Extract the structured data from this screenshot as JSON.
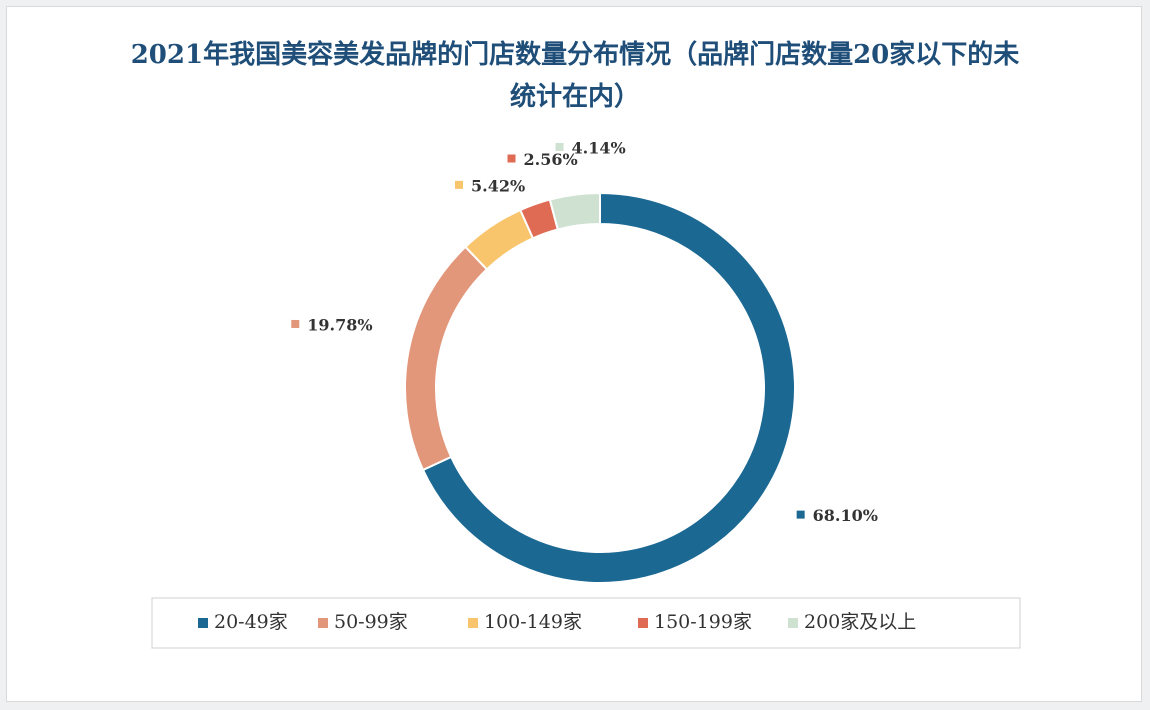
{
  "chart_data": {
    "type": "donut",
    "title": "2021年我国美容美发品牌的门店数量分布情况（品牌门店数量20家以下的未统计在内）",
    "categories": [
      "20-49家",
      "50-99家",
      "100-149家",
      "150-199家",
      "200家及以上"
    ],
    "values": [
      68.1,
      19.78,
      5.42,
      2.56,
      4.14
    ],
    "value_labels": [
      "68.10%",
      "19.78%",
      "5.42%",
      "2.56%",
      "4.14%"
    ],
    "colors": [
      "#1b6893",
      "#e3977a",
      "#f8c46c",
      "#e06b55",
      "#cfe2d2"
    ],
    "legend": "bottom"
  }
}
